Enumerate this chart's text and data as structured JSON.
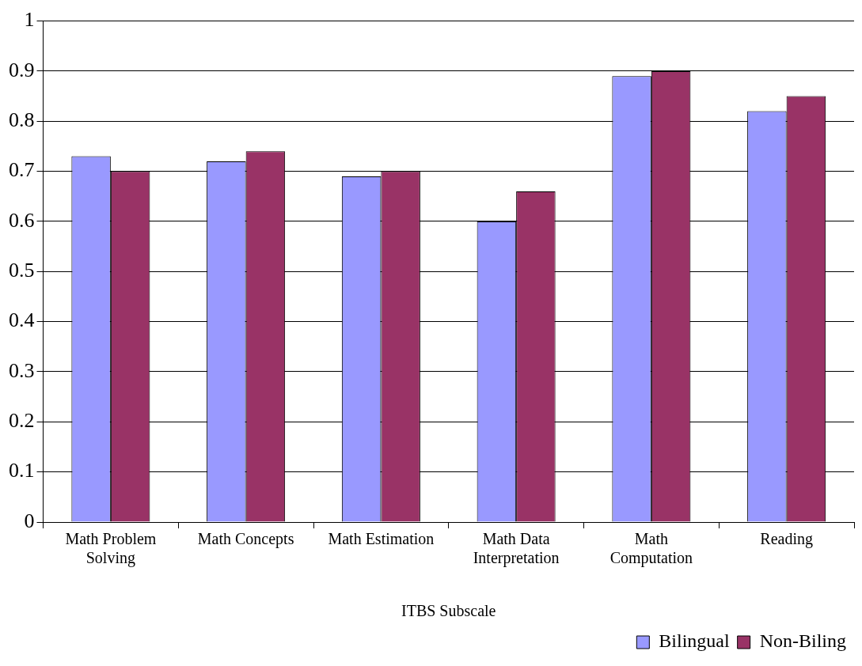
{
  "chart_data": {
    "type": "bar",
    "xlabel": "ITBS Subscale",
    "categories": [
      "Math Problem Solving",
      "Math Concepts",
      "Math Estimation",
      "Math Data Interpretation",
      "Math Computation",
      "Reading"
    ],
    "series": [
      {
        "name": "Bilingual",
        "color": "#9999ff",
        "values": [
          0.73,
          0.72,
          0.69,
          0.6,
          0.89,
          0.82
        ]
      },
      {
        "name": "Non-Biling",
        "color": "#993366",
        "values": [
          0.7,
          0.74,
          0.7,
          0.66,
          0.9,
          0.85
        ]
      }
    ],
    "ylim": [
      0,
      1
    ],
    "yticks": [
      0,
      0.1,
      0.2,
      0.3,
      0.4,
      0.5,
      0.6,
      0.7,
      0.8,
      0.9,
      1
    ],
    "grid": "y",
    "legend": "bottom right"
  }
}
